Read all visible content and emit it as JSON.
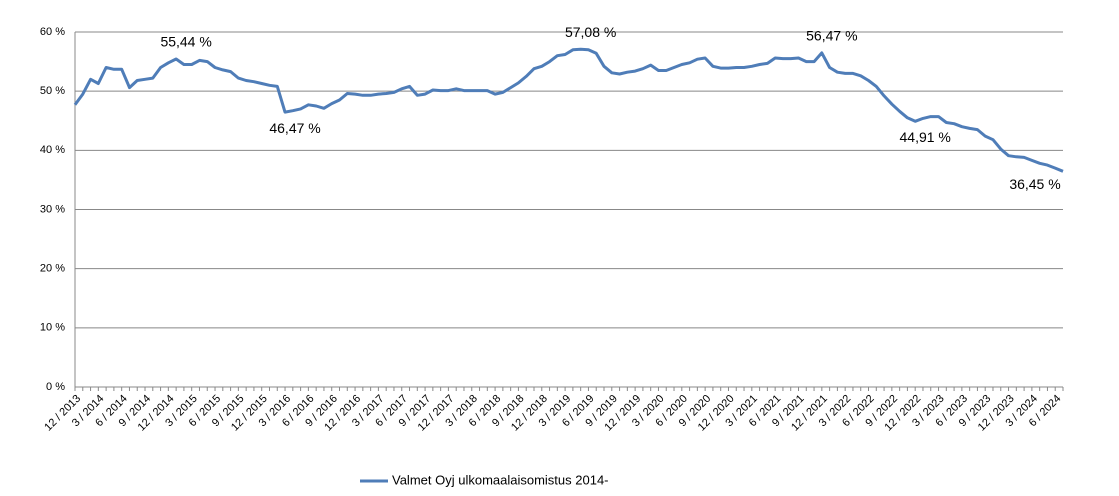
{
  "chart_data": {
    "type": "line",
    "categories": [
      "12 / 2013",
      null,
      null,
      "3 / 2014",
      null,
      null,
      "6 / 2014",
      null,
      null,
      "9 / 2014",
      null,
      null,
      "12 / 2014",
      null,
      null,
      "3 / 2015",
      null,
      null,
      "6 / 2015",
      null,
      null,
      "9 / 2015",
      null,
      null,
      "12 / 2015",
      null,
      null,
      "3 / 2016",
      null,
      null,
      "6 / 2016",
      null,
      null,
      "9 / 2016",
      null,
      null,
      "12 / 2016",
      null,
      null,
      "3 / 2017",
      null,
      null,
      "6 / 2017",
      null,
      null,
      "9 / 2017",
      null,
      null,
      "12 / 2017",
      null,
      null,
      "3 / 2018",
      null,
      null,
      "6 / 2018",
      null,
      null,
      "9 / 2018",
      null,
      null,
      "12 / 2018",
      null,
      null,
      "3 / 2019",
      null,
      null,
      "6 / 2019",
      null,
      null,
      "9 / 2019",
      null,
      null,
      "12 / 2019",
      null,
      null,
      "3 / 2020",
      null,
      null,
      "6 / 2020",
      null,
      null,
      "9 / 2020",
      null,
      null,
      "12 / 2020",
      null,
      null,
      "3 / 2021",
      null,
      null,
      "6 / 2021",
      null,
      null,
      "9 / 2021",
      null,
      null,
      "12 / 2021",
      null,
      null,
      "3 / 2022",
      null,
      null,
      "6 / 2022",
      null,
      null,
      "9 / 2022",
      null,
      null,
      "12 / 2022",
      null,
      null,
      "3 / 2023",
      null,
      null,
      "6 / 2023",
      null,
      null,
      "9 / 2023",
      null,
      null,
      "12 / 2023",
      null,
      null,
      "3 / 2024",
      null,
      null,
      "6 / 2024",
      null
    ],
    "series": [
      {
        "name": "Valmet Oyj ulkomaalaisomistus 2014-",
        "color": "#4f7db8",
        "values": [
          47.7,
          49.5,
          52.0,
          51.3,
          54.0,
          53.7,
          53.7,
          50.6,
          51.8,
          52.0,
          52.2,
          54.0,
          54.8,
          55.44,
          54.5,
          54.5,
          55.2,
          55.0,
          54.0,
          53.6,
          53.3,
          52.2,
          51.8,
          51.6,
          51.3,
          51.0,
          50.8,
          46.47,
          46.7,
          47.0,
          47.7,
          47.5,
          47.1,
          47.9,
          48.5,
          49.6,
          49.5,
          49.3,
          49.3,
          49.5,
          49.6,
          49.8,
          50.4,
          50.8,
          49.3,
          49.5,
          50.2,
          50.1,
          50.1,
          50.4,
          50.1,
          50.1,
          50.1,
          50.1,
          49.5,
          49.8,
          50.6,
          51.4,
          52.5,
          53.8,
          54.2,
          55.0,
          56.0,
          56.2,
          57.0,
          57.08,
          57.0,
          56.4,
          54.2,
          53.1,
          52.9,
          53.2,
          53.4,
          53.8,
          54.4,
          53.5,
          53.5,
          54.0,
          54.5,
          54.8,
          55.4,
          55.6,
          54.2,
          53.9,
          53.9,
          54.0,
          54.0,
          54.2,
          54.5,
          54.7,
          55.6,
          55.5,
          55.5,
          55.6,
          55.0,
          55.0,
          56.47,
          54.0,
          53.2,
          53.0,
          53.0,
          52.6,
          51.8,
          50.8,
          49.2,
          47.8,
          46.6,
          45.5,
          44.91,
          45.4,
          45.7,
          45.7,
          44.7,
          44.5,
          44.0,
          43.7,
          43.5,
          42.4,
          41.8,
          40.2,
          39.1,
          38.9,
          38.8,
          38.3,
          37.8,
          37.5,
          37.0,
          36.45
        ],
        "value_labels": [
          null,
          null,
          null,
          null,
          null,
          null,
          null,
          null,
          null,
          null,
          null,
          null,
          null,
          "55,44 %",
          null,
          null,
          null,
          null,
          null,
          null,
          null,
          null,
          null,
          null,
          null,
          null,
          null,
          "46,47 %",
          null,
          null,
          null,
          null,
          null,
          null,
          null,
          null,
          null,
          null,
          null,
          null,
          null,
          null,
          null,
          null,
          null,
          null,
          null,
          null,
          null,
          null,
          null,
          null,
          null,
          null,
          null,
          null,
          null,
          null,
          null,
          null,
          null,
          null,
          null,
          null,
          null,
          "57,08 %",
          null,
          null,
          null,
          null,
          null,
          null,
          null,
          null,
          null,
          null,
          null,
          null,
          null,
          null,
          null,
          null,
          null,
          null,
          null,
          null,
          null,
          null,
          null,
          null,
          null,
          null,
          null,
          null,
          null,
          null,
          "56,47 %",
          null,
          null,
          null,
          null,
          null,
          null,
          null,
          null,
          null,
          null,
          null,
          "44,91 %",
          null,
          null,
          null,
          null,
          null,
          null,
          null,
          null,
          null,
          null,
          null,
          null,
          null,
          null,
          null,
          null,
          null,
          null,
          "36,45 %"
        ]
      }
    ],
    "ylim": [
      0,
      60
    ],
    "yticks": [
      {
        "value": 0,
        "label": "0 %"
      },
      {
        "value": 10,
        "label": "10 %"
      },
      {
        "value": 20,
        "label": "20 %"
      },
      {
        "value": 30,
        "label": "30 %"
      },
      {
        "value": 40,
        "label": "40 %"
      },
      {
        "value": 50,
        "label": "50 %"
      },
      {
        "value": 60,
        "label": "60 %"
      }
    ],
    "grid": true,
    "legend": "bottom"
  }
}
